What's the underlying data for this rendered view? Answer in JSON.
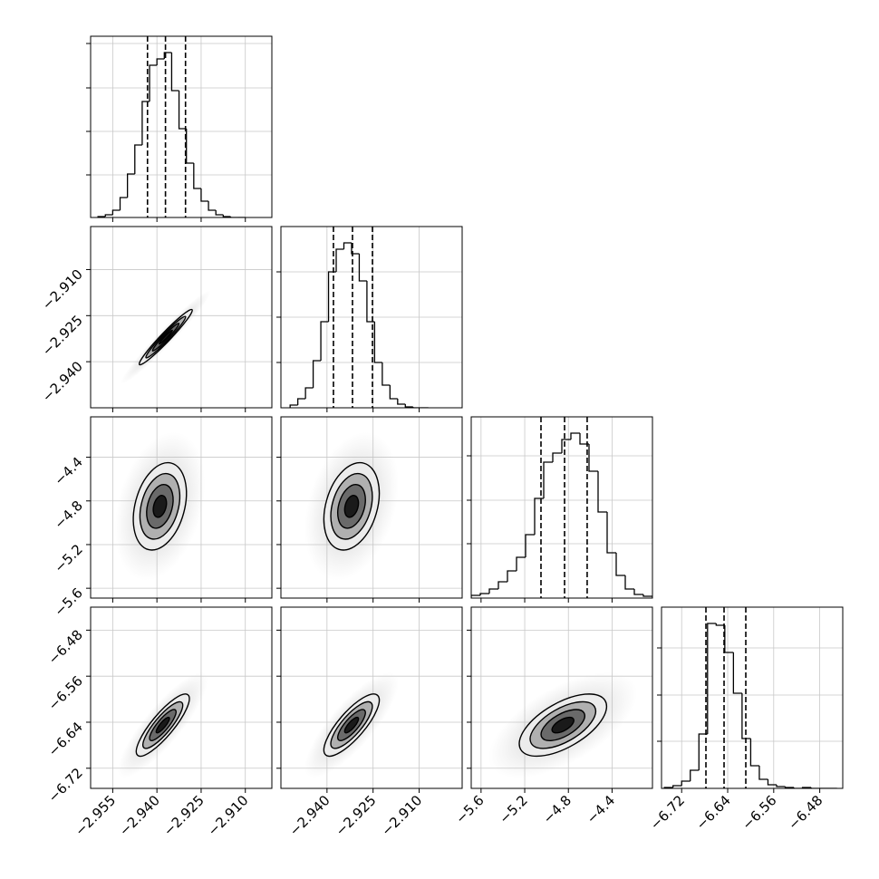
{
  "chart_data": {
    "type": "corner",
    "grid": true,
    "contour_levels": [
      0.5,
      1,
      1.5,
      2
    ],
    "parameters": [
      {
        "lim": [
          -2.9625,
          -2.901
        ],
        "ticks": [
          {
            "value": -2.955,
            "label": "−2.955"
          },
          {
            "value": -2.94,
            "label": "−2.940"
          },
          {
            "value": -2.925,
            "label": "−2.925"
          },
          {
            "value": -2.91,
            "label": "−2.910"
          }
        ],
        "quantiles": [
          -2.9432,
          -2.9371,
          -2.9303
        ],
        "hist": {
          "ylim": [
            0,
            200
          ],
          "yticks": [
            47,
            95,
            143,
            192
          ],
          "bins": [
            -2.96,
            -2.9575,
            -2.955,
            -2.9525,
            -2.95,
            -2.9475,
            -2.945,
            -2.9425,
            -2.94,
            -2.9375,
            -2.935,
            -2.9325,
            -2.93,
            -2.9275,
            -2.925,
            -2.9225,
            -2.92,
            -2.9175,
            -2.915,
            -2.9125,
            -2.91
          ],
          "counts": [
            1,
            3,
            8,
            22,
            48,
            80,
            128,
            168,
            175,
            182,
            140,
            98,
            60,
            32,
            18,
            8,
            3,
            1,
            0,
            0
          ]
        }
      },
      {
        "lim": [
          -2.955,
          -2.896
        ],
        "ticks": [
          {
            "value": -2.94,
            "label": "−2.940"
          },
          {
            "value": -2.925,
            "label": "−2.925"
          },
          {
            "value": -2.91,
            "label": "−2.910"
          }
        ],
        "quantiles": [
          -2.9379,
          -2.9317,
          -2.9252
        ],
        "hist": {
          "ylim": [
            0,
            200
          ],
          "yticks": [
            50,
            100,
            150
          ],
          "bins": [
            -2.952,
            -2.9495,
            -2.947,
            -2.9445,
            -2.942,
            -2.9395,
            -2.937,
            -2.9345,
            -2.932,
            -2.9295,
            -2.927,
            -2.9245,
            -2.922,
            -2.9195,
            -2.917,
            -2.9145,
            -2.912,
            -2.9095,
            -2.907
          ],
          "counts": [
            3,
            10,
            22,
            52,
            95,
            150,
            175,
            182,
            170,
            140,
            95,
            50,
            25,
            10,
            4,
            1,
            0,
            0
          ]
        }
      },
      {
        "lim": [
          -5.69,
          -4.03
        ],
        "ticks": [
          {
            "value": -5.6,
            "label": "−5.6"
          },
          {
            "value": -5.2,
            "label": "−5.2"
          },
          {
            "value": -4.8,
            "label": "−4.8"
          },
          {
            "value": -4.4,
            "label": "−4.4"
          }
        ],
        "quantiles": [
          -5.051,
          -4.835,
          -4.628
        ],
        "hist": {
          "ylim": [
            0,
            200
          ],
          "yticks": [
            60,
            108,
            157
          ],
          "bins": [
            -5.69,
            -5.607,
            -5.524,
            -5.441,
            -5.358,
            -5.275,
            -5.192,
            -5.109,
            -5.026,
            -4.943,
            -4.86,
            -4.777,
            -4.694,
            -4.611,
            -4.528,
            -4.445,
            -4.362,
            -4.279,
            -4.196,
            -4.113,
            -4.03
          ],
          "counts": [
            3,
            5,
            10,
            18,
            30,
            45,
            70,
            110,
            150,
            160,
            175,
            182,
            170,
            140,
            95,
            50,
            25,
            10,
            4,
            2
          ]
        }
      },
      {
        "lim": [
          -6.755,
          -6.44
        ],
        "ticks": [
          {
            "value": -6.72,
            "label": "−6.72"
          },
          {
            "value": -6.64,
            "label": "−6.64"
          },
          {
            "value": -6.56,
            "label": "−6.56"
          },
          {
            "value": -6.48,
            "label": "−6.48"
          }
        ],
        "quantiles": [
          -6.6778,
          -6.6463,
          -6.6085
        ],
        "hist": {
          "ylim": [
            0,
            200
          ],
          "yticks": [
            52,
            103,
            155
          ],
          "bins": [
            -6.75,
            -6.735,
            -6.72,
            -6.705,
            -6.69,
            -6.675,
            -6.66,
            -6.645,
            -6.63,
            -6.615,
            -6.6,
            -6.585,
            -6.57,
            -6.555,
            -6.54,
            -6.525,
            -6.51,
            -6.495,
            -6.48,
            -6.465,
            -6.45
          ],
          "counts": [
            1,
            3,
            8,
            20,
            60,
            182,
            180,
            150,
            105,
            55,
            25,
            10,
            4,
            2,
            1,
            0,
            1,
            0,
            0,
            0
          ]
        }
      }
    ],
    "pairs": [
      {
        "x": 0,
        "y": 1,
        "mean": [
          -2.937,
          -2.932
        ],
        "sd": [
          0.0045,
          0.0045
        ],
        "corr": 0.97
      },
      {
        "x": 0,
        "y": 2,
        "mean": [
          -2.939,
          -4.85
        ],
        "sd": [
          0.0045,
          0.2
        ],
        "corr": 0.3
      },
      {
        "x": 1,
        "y": 2,
        "mean": [
          -2.932,
          -4.85
        ],
        "sd": [
          0.0045,
          0.2
        ],
        "corr": 0.3
      },
      {
        "x": 0,
        "y": 3,
        "mean": [
          -2.938,
          -6.645
        ],
        "sd": [
          0.0045,
          0.027
        ],
        "corr": 0.85
      },
      {
        "x": 1,
        "y": 3,
        "mean": [
          -2.932,
          -6.645
        ],
        "sd": [
          0.0045,
          0.027
        ],
        "corr": 0.8
      },
      {
        "x": 2,
        "y": 3,
        "mean": [
          -4.85,
          -6.645
        ],
        "sd": [
          0.2,
          0.027
        ],
        "corr": 0.6
      }
    ]
  }
}
